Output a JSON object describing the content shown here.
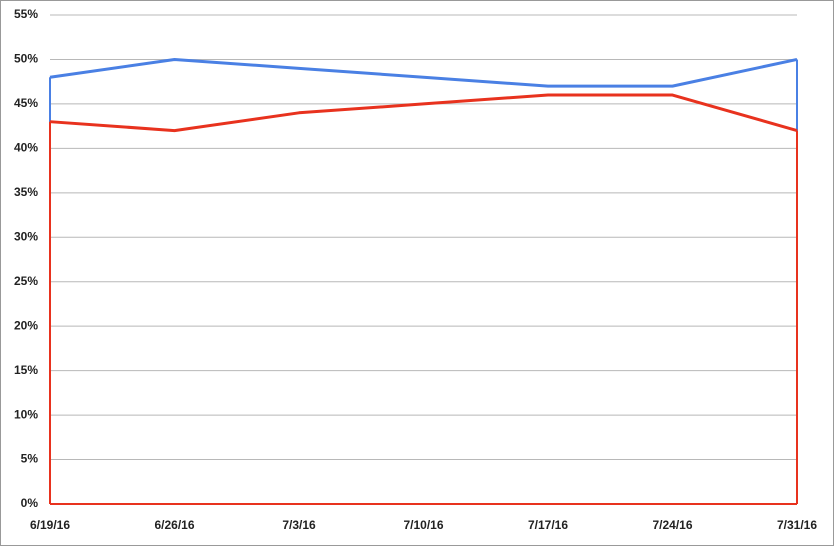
{
  "chart_data": {
    "type": "area",
    "categories": [
      "6/19/16",
      "6/26/16",
      "7/3/16",
      "7/10/16",
      "7/17/16",
      "7/24/16",
      "7/31/16"
    ],
    "series": [
      {
        "color": "#4a80e4",
        "values": [
          48,
          50,
          49,
          48,
          47,
          47,
          50
        ]
      },
      {
        "color": "#e8321e",
        "values": [
          43,
          42,
          44,
          45,
          46,
          46,
          42
        ]
      }
    ],
    "ylim": [
      0,
      55
    ],
    "yticks": [
      {
        "value": 0,
        "label": "0%"
      },
      {
        "value": 5,
        "label": "5%"
      },
      {
        "value": 10,
        "label": "10%"
      },
      {
        "value": 15,
        "label": "15%"
      },
      {
        "value": 20,
        "label": "20%"
      },
      {
        "value": 25,
        "label": "25%"
      },
      {
        "value": 30,
        "label": "30%"
      },
      {
        "value": 35,
        "label": "35%"
      },
      {
        "value": 40,
        "label": "40%"
      },
      {
        "value": 45,
        "label": "45%"
      },
      {
        "value": 50,
        "label": "50%"
      },
      {
        "value": 55,
        "label": "55%"
      }
    ],
    "grid": true
  }
}
